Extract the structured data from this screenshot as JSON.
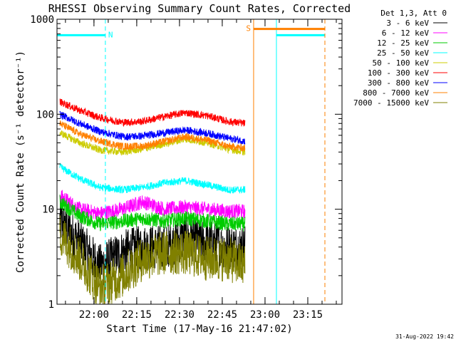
{
  "chart_data": {
    "type": "line",
    "title": "RHESSI Observing Summary Count Rates, Corrected",
    "xlabel": "Start Time (17-May-16 21:47:02)",
    "ylabel": "Corrected Count Rate (s⁻¹ detector⁻¹)",
    "y_scale": "log",
    "ylim": [
      1,
      1000
    ],
    "xlim": [
      "21:47:02",
      "23:27:00"
    ],
    "x_tick_labels": [
      "22:00",
      "22:15",
      "22:30",
      "22:45",
      "23:00",
      "23:15"
    ],
    "y_tick_labels": [
      "1",
      "10",
      "100",
      "1000"
    ],
    "grid": false,
    "legend_position": "outside-right",
    "legend_header": "Det 1,3, Att 0",
    "footer": "31-Aug-2022 19:42",
    "series": [
      {
        "name": "3 - 6 keV",
        "color": "#000000",
        "x": [
          "21:48",
          "21:55",
          "22:02",
          "22:10",
          "22:17",
          "22:25",
          "22:32",
          "22:40",
          "22:47",
          "22:53"
        ],
        "values": [
          7.5,
          4.5,
          2.5,
          3.5,
          4.0,
          4.0,
          5.0,
          4.5,
          4.0,
          4.0
        ]
      },
      {
        "name": "6 - 12 keV",
        "color": "#ff00ff",
        "x": [
          "21:48",
          "21:55",
          "22:02",
          "22:10",
          "22:17",
          "22:25",
          "22:32",
          "22:40",
          "22:47",
          "22:53"
        ],
        "values": [
          14,
          10,
          9,
          10,
          12,
          10,
          10.5,
          10,
          9.5,
          9.5
        ]
      },
      {
        "name": "12 - 25 keV",
        "color": "#00cc00",
        "x": [
          "21:48",
          "21:55",
          "22:02",
          "22:10",
          "22:17",
          "22:25",
          "22:32",
          "22:40",
          "22:47",
          "22:53"
        ],
        "values": [
          12,
          8.5,
          7,
          7.5,
          8,
          7.5,
          8,
          7.5,
          7,
          7
        ]
      },
      {
        "name": "25 - 50 keV",
        "color": "#00ffff",
        "x": [
          "21:48",
          "21:55",
          "22:02",
          "22:10",
          "22:17",
          "22:25",
          "22:32",
          "22:40",
          "22:47",
          "22:53"
        ],
        "values": [
          28,
          21,
          17,
          16,
          17,
          19,
          20,
          18,
          16,
          16
        ]
      },
      {
        "name": "50 - 100 keV",
        "color": "#cccc00",
        "x": [
          "21:48",
          "21:55",
          "22:02",
          "22:10",
          "22:17",
          "22:25",
          "22:32",
          "22:40",
          "22:47",
          "22:53"
        ],
        "values": [
          64,
          50,
          42,
          40,
          43,
          49,
          55,
          50,
          43,
          40
        ]
      },
      {
        "name": "100 - 300 keV",
        "color": "#ff0000",
        "x": [
          "21:48",
          "21:55",
          "22:02",
          "22:10",
          "22:17",
          "22:25",
          "22:32",
          "22:40",
          "22:47",
          "22:53"
        ],
        "values": [
          135,
          110,
          92,
          82,
          84,
          95,
          104,
          96,
          84,
          80
        ]
      },
      {
        "name": "300 - 800 keV",
        "color": "#0000ff",
        "x": [
          "21:48",
          "21:55",
          "22:02",
          "22:10",
          "22:17",
          "22:25",
          "22:32",
          "22:40",
          "22:47",
          "22:53"
        ],
        "values": [
          100,
          80,
          66,
          58,
          59,
          64,
          68,
          63,
          56,
          52
        ]
      },
      {
        "name": "800 - 7000 keV",
        "color": "#ff8000",
        "x": [
          "21:48",
          "21:55",
          "22:02",
          "22:10",
          "22:17",
          "22:25",
          "22:32",
          "22:40",
          "22:47",
          "22:53"
        ],
        "values": [
          80,
          62,
          52,
          46,
          46,
          52,
          58,
          53,
          46,
          44
        ]
      },
      {
        "name": "7000 - 15000 keV",
        "color": "#808000",
        "x": [
          "21:48",
          "21:55",
          "22:02",
          "22:10",
          "22:17",
          "22:25",
          "22:32",
          "22:40",
          "22:47",
          "22:53"
        ],
        "values": [
          5.5,
          3.0,
          1.5,
          2.0,
          3.0,
          3.5,
          3.5,
          3.0,
          3.0,
          2.5
        ]
      }
    ],
    "annotations": [
      {
        "label": "N",
        "color": "#00ffff",
        "start": "21:47:02",
        "end": "22:04:00",
        "value": 680
      },
      {
        "label": "",
        "color": "#00ffff",
        "start": "23:04:00",
        "end": "23:21:00",
        "value": 680
      },
      {
        "label": "S",
        "color": "#ff8000",
        "start": "22:56:00",
        "end": "23:21:00",
        "value": 790
      }
    ]
  }
}
